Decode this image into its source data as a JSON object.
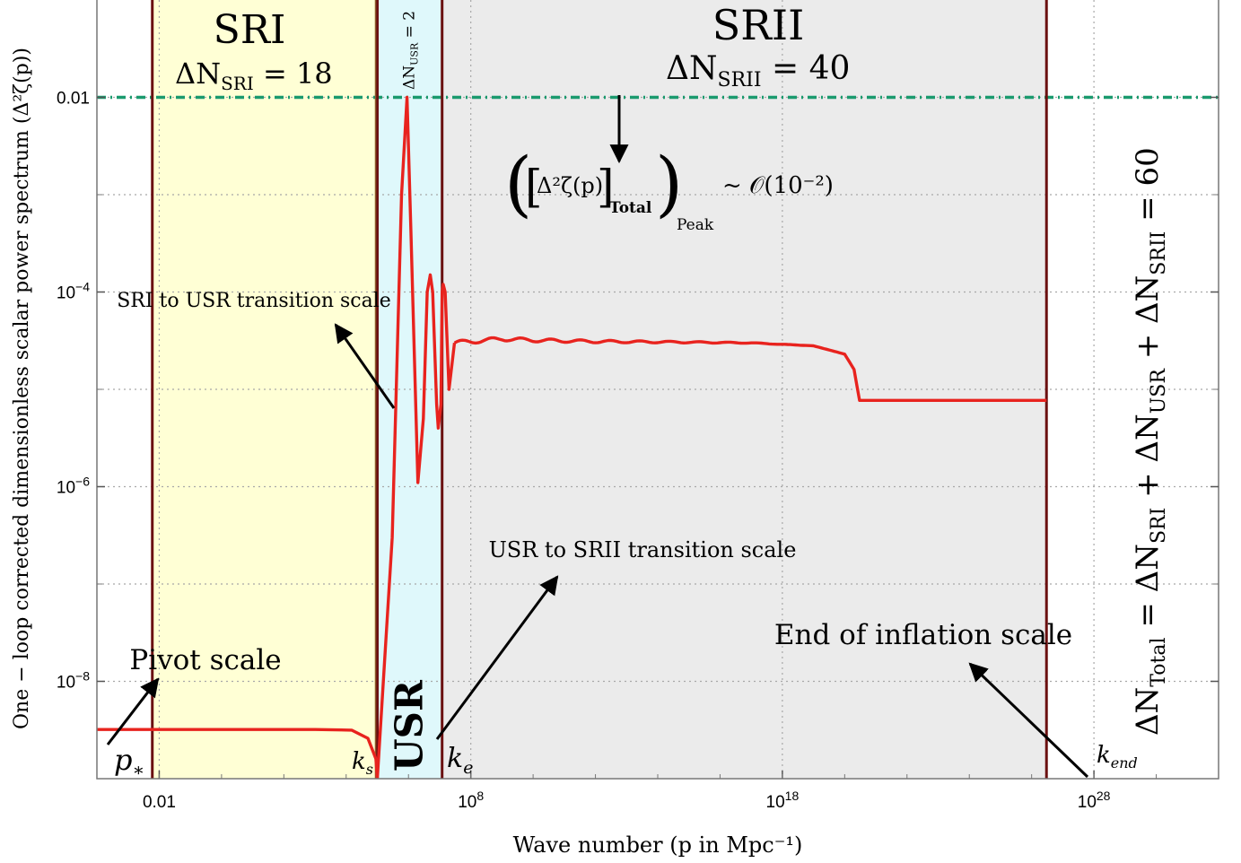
{
  "chart_data": {
    "type": "line",
    "x_scale": "log10",
    "y_scale": "log10",
    "xlim": [
      0.0001,
      1e+32
    ],
    "ylim": [
      1e-09,
      0.1
    ],
    "grid": true,
    "xlabel": "Wave number  (p in Mpc⁻¹)",
    "ylabel": "One − loop corrected dimensionless scalar power spectrum  (Δ²ζ(p))",
    "x_ticks": [
      {
        "value": 0.01,
        "label": "0.01"
      },
      {
        "value": 100000000.0,
        "label": "10",
        "sup": "8"
      },
      {
        "value": 1e+18,
        "label": "10",
        "sup": "18"
      },
      {
        "value": 1e+28,
        "label": "10",
        "sup": "28"
      }
    ],
    "y_ticks": [
      {
        "value": 0.01,
        "label": "0.01"
      },
      {
        "value": 0.0001,
        "label": "10",
        "sup": "−4"
      },
      {
        "value": 1e-06,
        "label": "10",
        "sup": "−6"
      },
      {
        "value": 1e-08,
        "label": "10",
        "sup": "−8"
      }
    ],
    "regions": [
      {
        "name": "SRI",
        "x_start": 0.006,
        "x_end": 100000.0,
        "color": "#ffffd5",
        "efolds_label": "ΔN",
        "efolds_sub": "SRI",
        "efolds_value": " = 18"
      },
      {
        "name": "USR",
        "x_start": 100000.0,
        "x_end": 12000000.0,
        "color": "#dff8fb",
        "efolds_label": "ΔN",
        "efolds_sub": "USR",
        "efolds_value": " = 2"
      },
      {
        "name": "SRII",
        "x_start": 12000000.0,
        "x_end": 3e+26,
        "color": "#ebebeb",
        "efolds_label": "ΔN",
        "efolds_sub": "SRII",
        "efolds_value": " = 40"
      }
    ],
    "threshold": {
      "y": 0.01,
      "color": "#1a9a6e",
      "style": "dash-dot"
    },
    "series": [
      {
        "color": "#e8231e",
        "segments": [
          [
            [
              0.0001,
              3.2e-09
            ],
            [
              1000,
              3.2e-09
            ],
            [
              15000,
              3.15e-09
            ],
            [
              50000,
              2.6e-09
            ],
            [
              90000,
              1.6e-09
            ],
            [
              100000,
              1e-09
            ]
          ],
          [
            [
              100000,
              1e-09
            ],
            [
              300000,
              3e-07
            ],
            [
              600000,
              0.001
            ],
            [
              900000,
              0.01
            ],
            [
              1200000,
              0.0004
            ],
            [
              2000000,
              1.1e-06
            ],
            [
              3000000,
              5e-06
            ],
            [
              4000000,
              0.0001
            ],
            [
              5000000,
              0.00015
            ],
            [
              6000000,
              0.0001
            ],
            [
              8000000,
              7e-06
            ],
            [
              9000000,
              4e-06
            ],
            [
              11000000,
              7e-06
            ],
            [
              12000000,
              0.0001
            ],
            [
              13000000,
              0.00012
            ],
            [
              15000000,
              0.0001
            ],
            [
              20000000,
              1e-05
            ],
            [
              30000000,
              3e-05
            ]
          ],
          [
            [
              30000000,
              3e-05
            ],
            [
              1000000000.0,
              3.3e-05
            ],
            [
              10000000000.0,
              3.2e-05
            ],
            [
              1000000000000.0,
              3.1e-05
            ],
            [
              1000000000000000.0,
              3.05e-05
            ],
            [
              1e+17,
              3e-05
            ],
            [
              1e+19,
              2.8e-05
            ],
            [
              1e+20,
              2.3e-05
            ],
            [
              2e+20,
              1.6e-05
            ],
            [
              3e+20,
              7.7e-06
            ],
            [
              3e+26,
              7.7e-06
            ]
          ]
        ],
        "ripple_range": [
          30000000,
          1e+19
        ],
        "ripple_amplitude": 0.022
      }
    ],
    "annotations": {
      "sri_title": "SRI",
      "srii_title": "SRII",
      "usr_vertical": "USR",
      "usr_efolds": "ΔN",
      "usr_efolds_sub": "USR",
      "usr_efolds_val": " = 2",
      "sri_efolds": "ΔN",
      "sri_efolds_sub": "SRI",
      "sri_efolds_val": " = 18",
      "srii_efolds": "ΔN",
      "srii_efolds_sub": "SRII",
      "srii_efolds_val": " = 40",
      "peak_formula_main": "Δ²ζ(p)",
      "peak_formula_sub_total": "Total",
      "peak_formula_sub_peak": "Peak",
      "peak_formula_rhs": "~ 𝒪(10⁻²)",
      "sri_usr_transition": "SRI to USR transition scale",
      "usr_srii_transition": "USR to SRII transition scale",
      "pivot_scale": "Pivot scale",
      "end_inflation": "End of inflation scale",
      "p_star": "p",
      "p_star_sub": "∗",
      "k_s": "k",
      "k_s_sub": "s",
      "k_e": "k",
      "k_e_sub": "e",
      "k_end": "k",
      "k_end_sub": "end",
      "total_efolds": "ΔN",
      "total_efolds_sub": "Total",
      "total_efolds_rhs": " = ΔN",
      "total_sri_sub": "SRI",
      "plus1": " + ΔN",
      "total_usr_sub": "USR",
      "plus2": " + ΔN",
      "total_srii_sub": "SRII",
      "total_value": " = 60"
    }
  }
}
